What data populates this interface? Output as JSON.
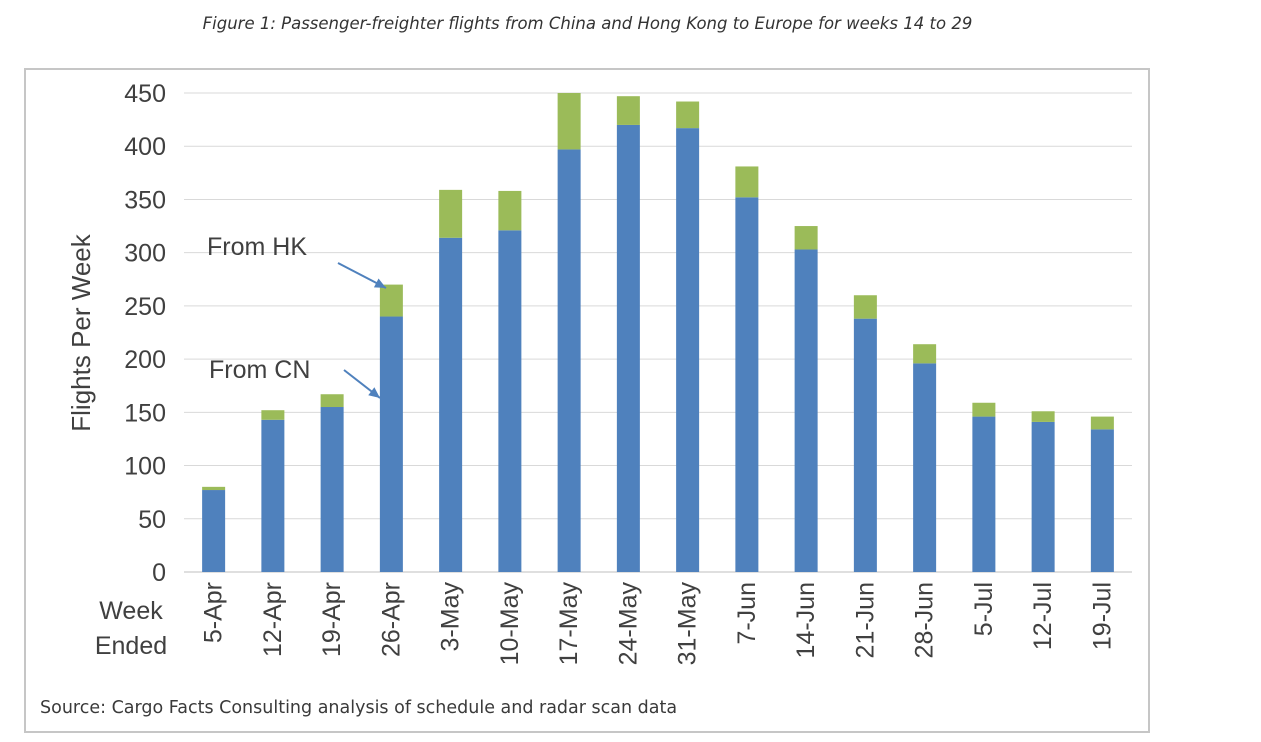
{
  "caption": "Figure 1: Passenger-freighter flights from China and Hong Kong to Europe for weeks 14 to 29",
  "source": "Source: Cargo Facts Consulting analysis of schedule and radar scan data",
  "chart_data": {
    "type": "bar",
    "stacked": true,
    "title": "",
    "ylabel": "Flights Per Week",
    "xlabel": "Week Ended",
    "ylim": [
      0,
      450
    ],
    "yticks": [
      0,
      50,
      100,
      150,
      200,
      250,
      300,
      350,
      400,
      450
    ],
    "grid": true,
    "categories": [
      "5-Apr",
      "12-Apr",
      "19-Apr",
      "26-Apr",
      "3-May",
      "10-May",
      "17-May",
      "24-May",
      "31-May",
      "7-Jun",
      "14-Jun",
      "21-Jun",
      "28-Jun",
      "5-Jul",
      "12-Jul",
      "19-Jul"
    ],
    "series": [
      {
        "name": "From CN",
        "color": "#4f81bd",
        "values": [
          77,
          143,
          155,
          240,
          314,
          321,
          397,
          420,
          417,
          352,
          303,
          238,
          196,
          146,
          141,
          134
        ]
      },
      {
        "name": "From HK",
        "color": "#9bbb59",
        "values": [
          3,
          9,
          12,
          30,
          45,
          37,
          53,
          27,
          25,
          29,
          22,
          22,
          18,
          13,
          10,
          12
        ]
      }
    ],
    "annotations": [
      "From HK",
      "From CN"
    ]
  }
}
